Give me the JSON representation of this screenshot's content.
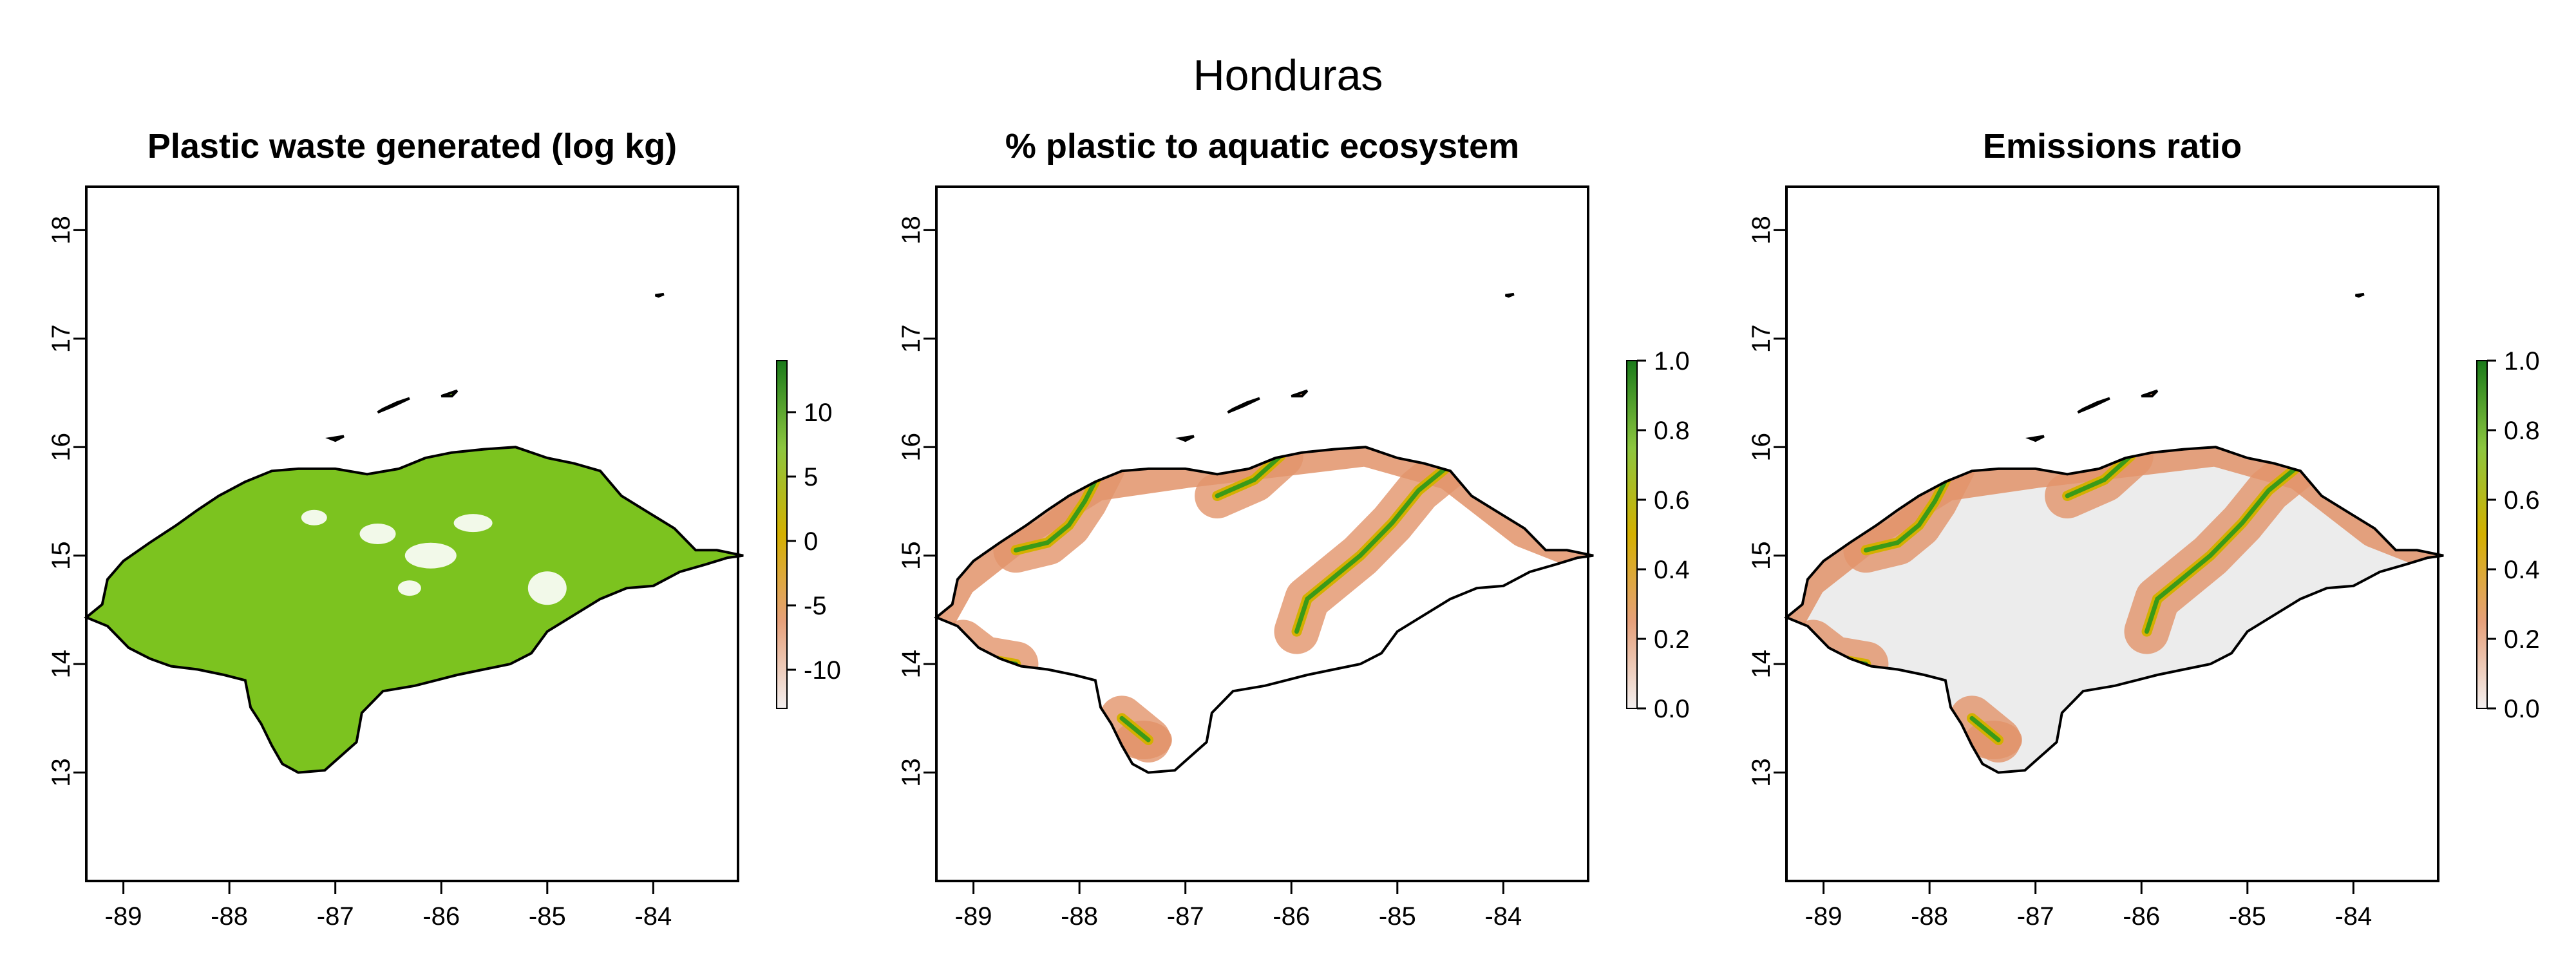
{
  "figure": {
    "title": "Honduras"
  },
  "panels": [
    {
      "title": "Plastic waste generated (log kg)",
      "colorbar": {
        "min": -13,
        "max": 14,
        "ticks": [
          "10",
          "5",
          "0",
          "-5",
          "-10"
        ],
        "tick_values": [
          10,
          5,
          0,
          -5,
          -10
        ],
        "colors": [
          "#f4f0f0",
          "#e6a07a",
          "#d4b000",
          "#8cc63f",
          "#1a7a1a"
        ]
      },
      "fill": "land-green"
    },
    {
      "title": "% plastic to aquatic ecosystem",
      "colorbar": {
        "min": 0,
        "max": 1,
        "ticks": [
          "1.0",
          "0.8",
          "0.6",
          "0.4",
          "0.2",
          "0.0"
        ],
        "tick_values": [
          1.0,
          0.8,
          0.6,
          0.4,
          0.2,
          0.0
        ],
        "colors": [
          "#f4f0f0",
          "#e6a07a",
          "#d4b000",
          "#8cc63f",
          "#1a7a1a"
        ]
      },
      "fill": "rivers"
    },
    {
      "title": "Emissions ratio",
      "colorbar": {
        "min": 0,
        "max": 1,
        "ticks": [
          "1.0",
          "0.8",
          "0.6",
          "0.4",
          "0.2",
          "0.0"
        ],
        "tick_values": [
          1.0,
          0.8,
          0.6,
          0.4,
          0.2,
          0.0
        ],
        "colors": [
          "#f4f0f0",
          "#e6a07a",
          "#d4b000",
          "#8cc63f",
          "#1a7a1a"
        ]
      },
      "fill": "ratio"
    }
  ],
  "axes": {
    "x_ticks": [
      "-89",
      "-88",
      "-87",
      "-86",
      "-85",
      "-84"
    ],
    "x_values": [
      -89,
      -88,
      -87,
      -86,
      -85,
      -84
    ],
    "y_ticks": [
      "13",
      "14",
      "15",
      "16",
      "17",
      "18"
    ],
    "y_values": [
      13,
      14,
      15,
      16,
      17,
      18
    ],
    "x_range": [
      -89.35,
      -83.2
    ],
    "y_range": [
      12.0,
      18.4
    ]
  },
  "colors": {
    "land_green": "#7cc31f",
    "river_green": "#3a9a18",
    "orange": "#e2936a",
    "grey": "#ececec"
  }
}
